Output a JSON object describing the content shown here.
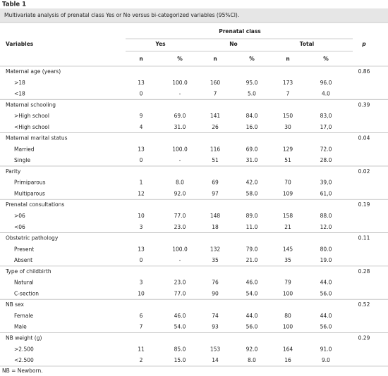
{
  "title": "Table 1",
  "caption": "Multivariate analysis of prenatal class Yes or No versus bi-categorized variables (95%CI).",
  "table": {
    "header": {
      "variables": "Variables",
      "group": "Prenatal class",
      "p": "p",
      "columns": [
        "Yes",
        "No",
        "Total"
      ],
      "subcolumns": [
        "n",
        "%",
        "n",
        "%",
        "n",
        "%"
      ]
    },
    "groups": [
      {
        "label": "Maternal age (years)",
        "p": "0.86",
        "rows": [
          [
            ">18",
            "13",
            "100.0",
            "160",
            "95.0",
            "173",
            "96.0"
          ],
          [
            "<18",
            "0",
            "-",
            "7",
            "5.0",
            "7",
            "4.0"
          ]
        ]
      },
      {
        "label": "Maternal schooling",
        "p": "0.39",
        "rows": [
          [
            ">High school",
            "9",
            "69.0",
            "141",
            "84.0",
            "150",
            "83,0"
          ],
          [
            "<High school",
            "4",
            "31.0",
            "26",
            "16.0",
            "30",
            "17,0"
          ]
        ]
      },
      {
        "label": "Maternal marital status",
        "p": "0.04",
        "rows": [
          [
            "Married",
            "13",
            "100.0",
            "116",
            "69.0",
            "129",
            "72.0"
          ],
          [
            "Single",
            "0",
            "-",
            "51",
            "31.0",
            "51",
            "28.0"
          ]
        ]
      },
      {
        "label": "Parity",
        "p": "0.02",
        "rows": [
          [
            "Primiparous",
            "1",
            "8.0",
            "69",
            "42.0",
            "70",
            "39,0"
          ],
          [
            "Multiparous",
            "12",
            "92.0",
            "97",
            "58.0",
            "109",
            "61,0"
          ]
        ]
      },
      {
        "label": "Prenatal consultations",
        "p": "0.19",
        "rows": [
          [
            ">06",
            "10",
            "77.0",
            "148",
            "89.0",
            "158",
            "88.0"
          ],
          [
            "<06",
            "3",
            "23.0",
            "18",
            "11.0",
            "21",
            "12.0"
          ]
        ]
      },
      {
        "label": "Obstetric pathology",
        "p": "0.11",
        "rows": [
          [
            "Present",
            "13",
            "100.0",
            "132",
            "79.0",
            "145",
            "80.0"
          ],
          [
            "Absent",
            "0",
            "-",
            "35",
            "21.0",
            "35",
            "19.0"
          ]
        ]
      },
      {
        "label": "Type of childbirth",
        "p": "0.28",
        "rows": [
          [
            "Natural",
            "3",
            "23.0",
            "76",
            "46.0",
            "79",
            "44.0"
          ],
          [
            "C-section",
            "10",
            "77.0",
            "90",
            "54.0",
            "100",
            "56.0"
          ]
        ]
      },
      {
        "label": "NB sex",
        "p": "0.52",
        "rows": [
          [
            "Female",
            "6",
            "46.0",
            "74",
            "44.0",
            "80",
            "44.0"
          ],
          [
            "Male",
            "7",
            "54.0",
            "93",
            "56.0",
            "100",
            "56.0"
          ]
        ]
      },
      {
        "label": "NB weight (g)",
        "p": "0.29",
        "rows": [
          [
            ">2.500",
            "11",
            "85.0",
            "153",
            "92.0",
            "164",
            "91.0"
          ],
          [
            "<2.500",
            "2",
            "15.0",
            "14",
            "8.0",
            "16",
            "9.0"
          ]
        ]
      }
    ]
  },
  "footnote": "NB = Newborn."
}
